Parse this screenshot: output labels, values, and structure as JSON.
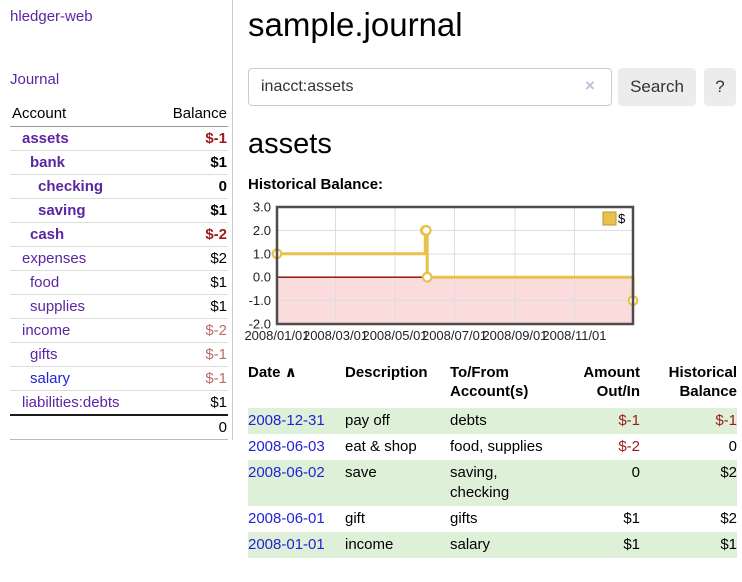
{
  "app_title": "hledger-web",
  "sidebar": {
    "journal_link": "Journal",
    "accounts": {
      "header_account": "Account",
      "header_balance": "Balance",
      "rows": [
        {
          "name": "assets",
          "balance": "$-1"
        },
        {
          "name": "bank",
          "balance": "$1"
        },
        {
          "name": "checking",
          "balance": "0"
        },
        {
          "name": "saving",
          "balance": "$1"
        },
        {
          "name": "cash",
          "balance": "$-2"
        },
        {
          "name": "expenses",
          "balance": "$2"
        },
        {
          "name": "food",
          "balance": "$1"
        },
        {
          "name": "supplies",
          "balance": "$1"
        },
        {
          "name": "income",
          "balance": "$-2"
        },
        {
          "name": "gifts",
          "balance": "$-1"
        },
        {
          "name": "salary",
          "balance": "$-1"
        },
        {
          "name": "liabilities:debts",
          "balance": "$1"
        }
      ],
      "total": "0"
    }
  },
  "main": {
    "title": "sample.journal",
    "search": {
      "value": "inacct:assets",
      "clear_icon": "×",
      "search_button": "Search",
      "help_button": "?"
    },
    "heading": "assets",
    "chart_title": "Historical Balance:",
    "register": {
      "col_date": "Date",
      "sort_indicator": "∧",
      "col_description": "Description",
      "col_accounts": "To/From Account(s)",
      "col_amount": "Amount Out/In",
      "col_balance": "Historical Balance",
      "rows": [
        {
          "date": "2008-12-31",
          "description": "pay off",
          "accounts": "debts",
          "amount": "$-1",
          "balance": "$-1"
        },
        {
          "date": "2008-06-03",
          "description": "eat & shop",
          "accounts": "food, supplies",
          "amount": "$-2",
          "balance": "0"
        },
        {
          "date": "2008-06-02",
          "description": "save",
          "accounts": "saving, checking",
          "amount": "0",
          "balance": "$2"
        },
        {
          "date": "2008-06-01",
          "description": "gift",
          "accounts": "gifts",
          "amount": "$1",
          "balance": "$2"
        },
        {
          "date": "2008-01-01",
          "description": "income",
          "accounts": "salary",
          "amount": "$1",
          "balance": "$1"
        }
      ]
    }
  },
  "chart_data": {
    "type": "line",
    "style": "step-after",
    "title": "Historical Balance:",
    "x": [
      "2008-01-01",
      "2008-06-01",
      "2008-06-02",
      "2008-06-03",
      "2008-12-31"
    ],
    "series": [
      {
        "name": "$",
        "values": [
          1,
          2,
          2,
          0,
          -1
        ]
      }
    ],
    "xrange": [
      "2008-01-01",
      "2008-12-31"
    ],
    "ylim": [
      -2,
      3
    ],
    "ytick_values": [
      3,
      2,
      1,
      0,
      -1,
      -2
    ],
    "ytick_labels": [
      "3.0",
      "2.0",
      "1.0",
      "0.0",
      "-1.0",
      "-2.0"
    ],
    "xtick_dates": [
      "2008-01-01",
      "2008-03-01",
      "2008-05-01",
      "2008-07-01",
      "2008-09-01",
      "2008-11-01"
    ],
    "xtick_labels": [
      "2008/01/01",
      "2008/03/01",
      "2008/05/01",
      "2008/07/01",
      "2008/09/01",
      "2008/11/01"
    ],
    "grid": true,
    "legend": {
      "label": "$",
      "position": "top-right"
    },
    "line_color": "#e8c24a",
    "legend_swatch_border": "#b89a2e",
    "negative_region_color": "#fbdcdc",
    "zero_line_color": "#8b0000",
    "plot_border_color": "#4d4d4d",
    "grid_color": "#ddd",
    "marker": "open-circle"
  }
}
